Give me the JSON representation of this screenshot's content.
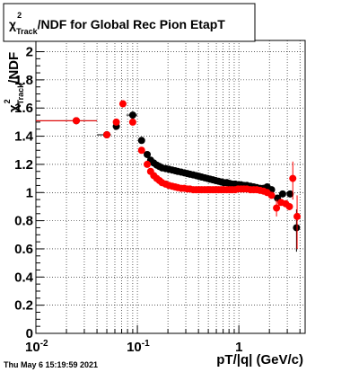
{
  "chart_data": {
    "type": "scatter",
    "title": {
      "symbol": "χ",
      "sup": "2",
      "sub": "Track",
      "rest": "/NDF for Global Rec Pion EtapT"
    },
    "xlabel": "pT/|q| (GeV/c)",
    "ylabel": {
      "symbol": "χ",
      "sup": "2",
      "sub": "Track",
      "rest": "/NDF"
    },
    "xscale": "log",
    "xlim": [
      0.01,
      4.5
    ],
    "ylim": [
      0,
      2.08
    ],
    "grid": true,
    "x_tick_labels": [
      {
        "value": 0.01,
        "base": "10",
        "exp": "-2"
      },
      {
        "value": 0.1,
        "base": "10",
        "exp": "-1"
      },
      {
        "value": 1,
        "base": "1",
        "exp": ""
      }
    ],
    "y_ticks": [
      "0",
      "0.2",
      "0.4",
      "0.6",
      "0.8",
      "1",
      "1.2",
      "1.4",
      "1.6",
      "1.8",
      "2"
    ],
    "y_tick_values": [
      0,
      0.2,
      0.4,
      0.6,
      0.8,
      1,
      1.2,
      1.4,
      1.6,
      1.8,
      2
    ],
    "timestamp": "Thu May  6 15:19:59 2021",
    "series": [
      {
        "color": "#000000",
        "points": [
          {
            "x": 0.025,
            "y": 1.51,
            "xlo": 0.01,
            "xhi": 0.04
          },
          {
            "x": 0.05,
            "y": 1.41,
            "xlo": 0.04,
            "xhi": 0.055
          },
          {
            "x": 0.062,
            "y": 1.47
          },
          {
            "x": 0.09,
            "y": 1.55,
            "xlo": 0.078,
            "xhi": 0.1
          },
          {
            "x": 0.11,
            "y": 1.37
          },
          {
            "x": 0.125,
            "y": 1.27
          },
          {
            "x": 0.135,
            "y": 1.23
          },
          {
            "x": 0.145,
            "y": 1.21
          },
          {
            "x": 0.155,
            "y": 1.195
          },
          {
            "x": 0.165,
            "y": 1.185
          },
          {
            "x": 0.175,
            "y": 1.175
          },
          {
            "x": 0.19,
            "y": 1.17
          },
          {
            "x": 0.205,
            "y": 1.165
          },
          {
            "x": 0.22,
            "y": 1.16
          },
          {
            "x": 0.235,
            "y": 1.155
          },
          {
            "x": 0.25,
            "y": 1.15
          },
          {
            "x": 0.27,
            "y": 1.145
          },
          {
            "x": 0.29,
            "y": 1.14
          },
          {
            "x": 0.31,
            "y": 1.135
          },
          {
            "x": 0.33,
            "y": 1.13
          },
          {
            "x": 0.355,
            "y": 1.125
          },
          {
            "x": 0.38,
            "y": 1.12
          },
          {
            "x": 0.405,
            "y": 1.115
          },
          {
            "x": 0.43,
            "y": 1.11
          },
          {
            "x": 0.46,
            "y": 1.105
          },
          {
            "x": 0.49,
            "y": 1.1
          },
          {
            "x": 0.52,
            "y": 1.095
          },
          {
            "x": 0.555,
            "y": 1.09
          },
          {
            "x": 0.59,
            "y": 1.085
          },
          {
            "x": 0.63,
            "y": 1.08
          },
          {
            "x": 0.67,
            "y": 1.075
          },
          {
            "x": 0.71,
            "y": 1.07
          },
          {
            "x": 0.76,
            "y": 1.07
          },
          {
            "x": 0.81,
            "y": 1.065
          },
          {
            "x": 0.86,
            "y": 1.06
          },
          {
            "x": 0.92,
            "y": 1.06
          },
          {
            "x": 0.98,
            "y": 1.055
          },
          {
            "x": 1.05,
            "y": 1.055
          },
          {
            "x": 1.12,
            "y": 1.05
          },
          {
            "x": 1.2,
            "y": 1.05
          },
          {
            "x": 1.3,
            "y": 1.045
          },
          {
            "x": 1.4,
            "y": 1.04
          },
          {
            "x": 1.5,
            "y": 1.035
          },
          {
            "x": 1.62,
            "y": 1.03
          },
          {
            "x": 1.75,
            "y": 1.03
          },
          {
            "x": 1.9,
            "y": 1.04
          },
          {
            "x": 2.1,
            "y": 1.02
          },
          {
            "x": 2.4,
            "y": 0.96
          },
          {
            "x": 2.7,
            "y": 0.99
          },
          {
            "x": 3.2,
            "y": 0.99
          },
          {
            "x": 3.7,
            "y": 0.75,
            "ylo": 0.58,
            "yhi": 0.88
          }
        ]
      },
      {
        "color": "#ff0000",
        "points": [
          {
            "x": 0.025,
            "y": 1.51,
            "xlo": 0.01,
            "xhi": 0.04
          },
          {
            "x": 0.05,
            "y": 1.41
          },
          {
            "x": 0.062,
            "y": 1.5
          },
          {
            "x": 0.072,
            "y": 1.63
          },
          {
            "x": 0.09,
            "y": 1.5
          },
          {
            "x": 0.11,
            "y": 1.3
          },
          {
            "x": 0.125,
            "y": 1.2
          },
          {
            "x": 0.135,
            "y": 1.15
          },
          {
            "x": 0.145,
            "y": 1.12
          },
          {
            "x": 0.155,
            "y": 1.1
          },
          {
            "x": 0.165,
            "y": 1.085
          },
          {
            "x": 0.175,
            "y": 1.07
          },
          {
            "x": 0.19,
            "y": 1.06
          },
          {
            "x": 0.205,
            "y": 1.05
          },
          {
            "x": 0.22,
            "y": 1.045
          },
          {
            "x": 0.235,
            "y": 1.04
          },
          {
            "x": 0.25,
            "y": 1.035
          },
          {
            "x": 0.27,
            "y": 1.03
          },
          {
            "x": 0.29,
            "y": 1.03
          },
          {
            "x": 0.31,
            "y": 1.025
          },
          {
            "x": 0.33,
            "y": 1.025
          },
          {
            "x": 0.355,
            "y": 1.02
          },
          {
            "x": 0.38,
            "y": 1.02
          },
          {
            "x": 0.405,
            "y": 1.02
          },
          {
            "x": 0.43,
            "y": 1.02
          },
          {
            "x": 0.46,
            "y": 1.02
          },
          {
            "x": 0.49,
            "y": 1.02
          },
          {
            "x": 0.52,
            "y": 1.02
          },
          {
            "x": 0.555,
            "y": 1.02
          },
          {
            "x": 0.59,
            "y": 1.02
          },
          {
            "x": 0.63,
            "y": 1.02
          },
          {
            "x": 0.67,
            "y": 1.02
          },
          {
            "x": 0.71,
            "y": 1.02
          },
          {
            "x": 0.76,
            "y": 1.02
          },
          {
            "x": 0.81,
            "y": 1.02
          },
          {
            "x": 0.86,
            "y": 1.02
          },
          {
            "x": 0.92,
            "y": 1.02
          },
          {
            "x": 0.98,
            "y": 1.025
          },
          {
            "x": 1.05,
            "y": 1.025
          },
          {
            "x": 1.12,
            "y": 1.025
          },
          {
            "x": 1.2,
            "y": 1.025
          },
          {
            "x": 1.3,
            "y": 1.02
          },
          {
            "x": 1.4,
            "y": 1.02
          },
          {
            "x": 1.5,
            "y": 1.02
          },
          {
            "x": 1.62,
            "y": 1.015
          },
          {
            "x": 1.75,
            "y": 1.01
          },
          {
            "x": 1.9,
            "y": 1.0
          },
          {
            "x": 2.1,
            "y": 0.98
          },
          {
            "x": 2.35,
            "y": 0.89,
            "ylo": 0.83,
            "yhi": 0.95
          },
          {
            "x": 2.6,
            "y": 0.93
          },
          {
            "x": 2.9,
            "y": 0.92
          },
          {
            "x": 3.15,
            "y": 0.9
          },
          {
            "x": 3.4,
            "y": 1.1,
            "ylo": 0.95,
            "yhi": 1.22
          },
          {
            "x": 3.75,
            "y": 0.83,
            "ylo": 0.6,
            "yhi": 0.98
          }
        ]
      }
    ]
  }
}
